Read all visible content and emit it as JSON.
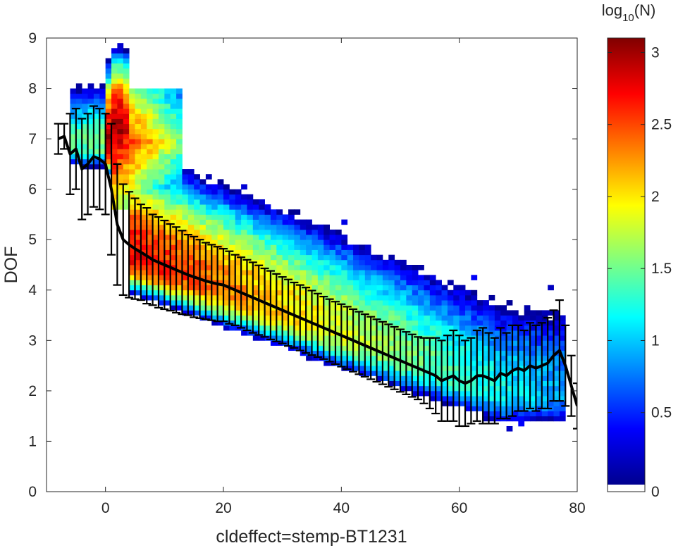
{
  "chart_data": {
    "type": "heatmap",
    "xlabel": "cldeffect=stemp-BT1231",
    "ylabel": "DOF",
    "xlim": [
      -10,
      80
    ],
    "ylim": [
      0,
      9
    ],
    "xticks": [
      0,
      20,
      40,
      60,
      80
    ],
    "yticks": [
      0,
      1,
      2,
      3,
      4,
      5,
      6,
      7,
      8,
      9
    ],
    "grid": false,
    "colormap": "jet",
    "colorbar": {
      "label_base": "log",
      "label_sub": "10",
      "label_rest": "(N)",
      "range": [
        0,
        3.1
      ],
      "ticks": [
        "0",
        "0.5",
        "1",
        "1.5",
        "2",
        "2.5",
        "3"
      ],
      "tick_values": [
        0,
        0.5,
        1,
        1.5,
        2,
        2.5,
        3
      ]
    },
    "mean_series": {
      "x": [
        -8,
        -7,
        -6,
        -5,
        -4,
        -3,
        -2,
        -1,
        0,
        1,
        2,
        3,
        4,
        5,
        6,
        7,
        8,
        9,
        10,
        11,
        12,
        13,
        14,
        15,
        16,
        17,
        18,
        19,
        20,
        21,
        22,
        23,
        24,
        25,
        26,
        27,
        28,
        29,
        30,
        31,
        32,
        33,
        34,
        35,
        36,
        37,
        38,
        39,
        40,
        41,
        42,
        43,
        44,
        45,
        46,
        47,
        48,
        49,
        50,
        51,
        52,
        53,
        54,
        55,
        56,
        57,
        58,
        59,
        60,
        61,
        62,
        63,
        64,
        65,
        66,
        67,
        68,
        69,
        70,
        71,
        72,
        73,
        74,
        75,
        76,
        77,
        78,
        79,
        80
      ],
      "y": [
        7.0,
        7.05,
        6.7,
        6.8,
        6.4,
        6.5,
        6.65,
        6.6,
        6.5,
        6.0,
        5.3,
        5.0,
        4.9,
        4.82,
        4.75,
        4.68,
        4.6,
        4.55,
        4.5,
        4.45,
        4.4,
        4.35,
        4.3,
        4.26,
        4.22,
        4.18,
        4.15,
        4.12,
        4.1,
        4.05,
        4.0,
        3.95,
        3.9,
        3.85,
        3.8,
        3.75,
        3.7,
        3.65,
        3.6,
        3.55,
        3.5,
        3.45,
        3.4,
        3.35,
        3.3,
        3.25,
        3.2,
        3.15,
        3.1,
        3.05,
        3.0,
        2.95,
        2.9,
        2.85,
        2.8,
        2.75,
        2.7,
        2.65,
        2.6,
        2.55,
        2.5,
        2.45,
        2.4,
        2.35,
        2.3,
        2.2,
        2.25,
        2.3,
        2.2,
        2.15,
        2.2,
        2.3,
        2.3,
        2.25,
        2.2,
        2.35,
        2.3,
        2.4,
        2.45,
        2.4,
        2.5,
        2.45,
        2.5,
        2.55,
        2.7,
        2.8,
        2.5,
        2.1,
        1.7
      ],
      "err": [
        0.3,
        0.25,
        0.8,
        0.8,
        1.0,
        1.0,
        1.0,
        1.0,
        1.0,
        1.3,
        1.2,
        1.1,
        1.05,
        1.0,
        0.95,
        0.95,
        0.9,
        0.9,
        0.88,
        0.86,
        0.85,
        0.83,
        0.8,
        0.8,
        0.78,
        0.76,
        0.75,
        0.74,
        0.72,
        0.72,
        0.7,
        0.7,
        0.7,
        0.7,
        0.69,
        0.68,
        0.68,
        0.67,
        0.66,
        0.66,
        0.65,
        0.65,
        0.65,
        0.64,
        0.63,
        0.62,
        0.62,
        0.62,
        0.62,
        0.62,
        0.62,
        0.62,
        0.62,
        0.62,
        0.62,
        0.62,
        0.62,
        0.62,
        0.62,
        0.62,
        0.62,
        0.62,
        0.65,
        0.7,
        0.75,
        0.8,
        0.85,
        0.9,
        0.9,
        0.85,
        0.85,
        0.9,
        0.95,
        0.9,
        0.85,
        0.9,
        0.85,
        0.9,
        0.85,
        0.8,
        0.85,
        0.85,
        0.85,
        0.9,
        0.9,
        1.0,
        0.8,
        0.6,
        0.45
      ]
    }
  }
}
